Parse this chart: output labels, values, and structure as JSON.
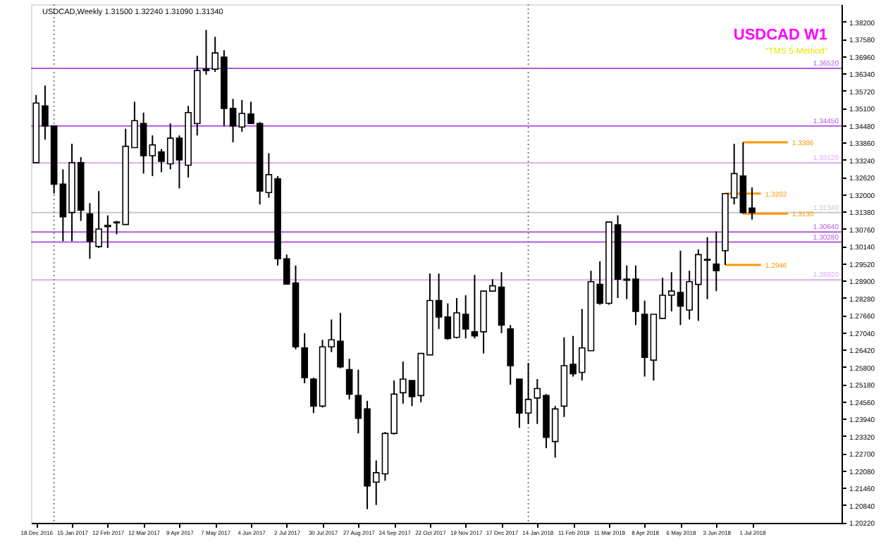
{
  "chart_data": {
    "type": "candlestick",
    "title": "USDCAD W1",
    "subtitle": "\"TMS 5-Method\"",
    "x": [
      "2016-12-18",
      "2016-12-25",
      "2017-01-01",
      "2017-01-08",
      "2017-01-15",
      "2017-01-22",
      "2017-01-29",
      "2017-02-05",
      "2017-02-12",
      "2017-02-19",
      "2017-02-26",
      "2017-03-05",
      "2017-03-12",
      "2017-03-19",
      "2017-03-26",
      "2017-04-02",
      "2017-04-09",
      "2017-04-16",
      "2017-04-23",
      "2017-04-30",
      "2017-05-07",
      "2017-05-14",
      "2017-05-21",
      "2017-05-28",
      "2017-06-04",
      "2017-06-11",
      "2017-06-18",
      "2017-06-25",
      "2017-07-02",
      "2017-07-09",
      "2017-07-16",
      "2017-07-23",
      "2017-07-30",
      "2017-08-06",
      "2017-08-13",
      "2017-08-20",
      "2017-08-27",
      "2017-09-03",
      "2017-09-10",
      "2017-09-17",
      "2017-09-24",
      "2017-10-01",
      "2017-10-08",
      "2017-10-15",
      "2017-10-22",
      "2017-10-29",
      "2017-11-05",
      "2017-11-12",
      "2017-11-19",
      "2017-11-26",
      "2017-12-03",
      "2017-12-10",
      "2017-12-17",
      "2017-12-24",
      "2017-12-31",
      "2018-01-07",
      "2018-01-14",
      "2018-01-21",
      "2018-01-28",
      "2018-02-04",
      "2018-02-11",
      "2018-02-18",
      "2018-02-25",
      "2018-03-04",
      "2018-03-11",
      "2018-03-18",
      "2018-03-25",
      "2018-04-01",
      "2018-04-08",
      "2018-04-15",
      "2018-04-22",
      "2018-04-29",
      "2018-05-06",
      "2018-05-13",
      "2018-05-20",
      "2018-05-27",
      "2018-06-03",
      "2018-06-10",
      "2018-06-17",
      "2018-06-24",
      "2018-07-01"
    ],
    "ohlc": [
      [
        1.3313,
        1.3556,
        1.3313,
        1.3527
      ],
      [
        1.3517,
        1.359,
        1.3396,
        1.3445
      ],
      [
        1.3445,
        1.3445,
        1.3202,
        1.3236
      ],
      [
        1.3236,
        1.3289,
        1.3031,
        1.3119
      ],
      [
        1.3134,
        1.3381,
        1.3031,
        1.3313
      ],
      [
        1.3313,
        1.3333,
        1.3104,
        1.3143
      ],
      [
        1.3129,
        1.3168,
        1.2968,
        1.3031
      ],
      [
        1.3012,
        1.3211,
        1.3007,
        1.3075
      ],
      [
        1.3083,
        1.3124,
        1.3007,
        1.3088
      ],
      [
        1.31,
        1.3104,
        1.3056,
        1.3097
      ],
      [
        1.3091,
        1.3435,
        1.309,
        1.3372
      ],
      [
        1.3367,
        1.3532,
        1.3367,
        1.3464
      ],
      [
        1.3454,
        1.3493,
        1.3274,
        1.3338
      ],
      [
        1.3338,
        1.3411,
        1.3265,
        1.3377
      ],
      [
        1.3352,
        1.3362,
        1.3279,
        1.3318
      ],
      [
        1.3309,
        1.3454,
        1.3289,
        1.3401
      ],
      [
        1.3401,
        1.3411,
        1.3221,
        1.3323
      ],
      [
        1.3304,
        1.3517,
        1.326,
        1.3493
      ],
      [
        1.3454,
        1.3697,
        1.3411,
        1.3644
      ],
      [
        1.3649,
        1.379,
        1.3629,
        1.3644
      ],
      [
        1.3649,
        1.3765,
        1.3639,
        1.3707
      ],
      [
        1.3692,
        1.3717,
        1.3445,
        1.3508
      ],
      [
        1.3508,
        1.3542,
        1.3386,
        1.3445
      ],
      [
        1.3441,
        1.3538,
        1.3424,
        1.349
      ],
      [
        1.3488,
        1.3532,
        1.3453,
        1.3454
      ],
      [
        1.3454,
        1.3459,
        1.3163,
        1.3211
      ],
      [
        1.3206,
        1.3347,
        1.3187,
        1.327
      ],
      [
        1.3255,
        1.3265,
        1.2944,
        1.2968
      ],
      [
        1.2968,
        1.2983,
        1.2876,
        1.2877
      ],
      [
        1.2881,
        1.2944,
        1.2643,
        1.2652
      ],
      [
        1.2648,
        1.2701,
        1.2521,
        1.2541
      ],
      [
        1.2536,
        1.2541,
        1.2414,
        1.2439
      ],
      [
        1.2439,
        1.2677,
        1.2434,
        1.2652
      ],
      [
        1.2652,
        1.275,
        1.2633,
        1.2677
      ],
      [
        1.2672,
        1.2774,
        1.2575,
        1.258
      ],
      [
        1.257,
        1.2609,
        1.2463,
        1.2482
      ],
      [
        1.2477,
        1.257,
        1.2341,
        1.2395
      ],
      [
        1.2429,
        1.2458,
        1.2069,
        1.2152
      ],
      [
        1.2166,
        1.2244,
        1.2084,
        1.22
      ],
      [
        1.2196,
        1.2346,
        1.2171,
        1.2341
      ],
      [
        1.2341,
        1.2531,
        1.2337,
        1.2482
      ],
      [
        1.2487,
        1.2599,
        1.2448,
        1.2536
      ],
      [
        1.2531,
        1.2531,
        1.2439,
        1.2473
      ],
      [
        1.2477,
        1.2628,
        1.2453,
        1.2628
      ],
      [
        1.2623,
        1.2915,
        1.2623,
        1.2818
      ],
      [
        1.2818,
        1.2915,
        1.2716,
        1.2759
      ],
      [
        1.2759,
        1.2808,
        1.2677,
        1.2682
      ],
      [
        1.2686,
        1.2827,
        1.2682,
        1.2774
      ],
      [
        1.2769,
        1.2837,
        1.2682,
        1.2716
      ],
      [
        1.2706,
        1.291,
        1.2682,
        1.2691
      ],
      [
        1.2706,
        1.2852,
        1.2628,
        1.2852
      ],
      [
        1.2852,
        1.2895,
        1.2852,
        1.2871
      ],
      [
        1.2866,
        1.292,
        1.2701,
        1.273
      ],
      [
        1.2716,
        1.273,
        1.2516,
        1.2584
      ],
      [
        1.2536,
        1.2536,
        1.2361,
        1.2414
      ],
      [
        1.2414,
        1.2594,
        1.2375,
        1.2463
      ],
      [
        1.2468,
        1.2536,
        1.2375,
        1.2502
      ],
      [
        1.2477,
        1.2482,
        1.2288,
        1.2327
      ],
      [
        1.2312,
        1.2439,
        1.2254,
        1.2429
      ],
      [
        1.2439,
        1.2686,
        1.24,
        1.2584
      ],
      [
        1.2589,
        1.2691,
        1.2545,
        1.2555
      ],
      [
        1.256,
        1.2788,
        1.2531,
        1.2648
      ],
      [
        1.2638,
        1.2925,
        1.2638,
        1.2886
      ],
      [
        1.2876,
        1.2959,
        1.2803,
        1.2808
      ],
      [
        1.2808,
        1.31,
        1.2803,
        1.31
      ],
      [
        1.309,
        1.3124,
        1.2827,
        1.2895
      ],
      [
        1.2895,
        1.2944,
        1.2823,
        1.2891
      ],
      [
        1.2895,
        1.2944,
        1.273,
        1.2779
      ],
      [
        1.2769,
        1.2818,
        1.2545,
        1.2614
      ],
      [
        1.2604,
        1.2769,
        1.2531,
        1.2769
      ],
      [
        1.2754,
        1.29,
        1.2754,
        1.2837
      ],
      [
        1.2837,
        1.292,
        1.2779,
        1.2852
      ],
      [
        1.2847,
        1.2997,
        1.273,
        1.2798
      ],
      [
        1.2784,
        1.2925,
        1.275,
        1.2886
      ],
      [
        1.2876,
        1.3002,
        1.2745,
        1.2983
      ],
      [
        1.2966,
        1.3046,
        1.2823,
        1.2963
      ],
      [
        1.2949,
        1.3066,
        1.2852,
        1.2925
      ],
      [
        1.2997,
        1.3202,
        1.2946,
        1.3202
      ],
      [
        1.3187,
        1.3381,
        1.3163,
        1.3274
      ],
      [
        1.3265,
        1.3386,
        1.313,
        1.3134
      ],
      [
        1.315,
        1.3224,
        1.3109,
        1.3134
      ]
    ],
    "series": [
      {
        "type": "line",
        "color": "#ff9900",
        "x": [
          "2018-06-24",
          "2018-07-29"
        ],
        "values": [
          1.3386,
          1.3386
        ]
      },
      {
        "type": "line",
        "color": "#ff9900",
        "x": [
          "2018-06-10",
          "2018-07-08"
        ],
        "values": [
          1.3202,
          1.3202
        ]
      },
      {
        "type": "line",
        "color": "#ff9900",
        "x": [
          "2018-06-24",
          "2018-07-29"
        ],
        "values": [
          1.313,
          1.313
        ]
      },
      {
        "type": "line",
        "color": "#ff9900",
        "x": [
          "2018-06-10",
          "2018-07-08"
        ],
        "values": [
          1.2946,
          1.2946
        ]
      }
    ],
    "xlim": [
      "2016-12-14",
      "2018-09-09"
    ],
    "ylim": [
      1.202,
      1.3882
    ],
    "xticks": [
      {
        "value": "2016-12-18",
        "label": "18 Dec 2016"
      },
      {
        "value": "2017-01-15",
        "label": "15 Jan 2017"
      },
      {
        "value": "2017-02-12",
        "label": "12 Feb 2017"
      },
      {
        "value": "2017-03-12",
        "label": "12 Mar 2017"
      },
      {
        "value": "2017-04-09",
        "label": "9 Apr 2017"
      },
      {
        "value": "2017-05-07",
        "label": "7 May 2017"
      },
      {
        "value": "2017-06-04",
        "label": "4 Jun 2017"
      },
      {
        "value": "2017-07-02",
        "label": "2 Jul 2017"
      },
      {
        "value": "2017-07-30",
        "label": "30 Jul 2017"
      },
      {
        "value": "2017-08-27",
        "label": "27 Aug 2017"
      },
      {
        "value": "2017-09-24",
        "label": "24 Sep 2017"
      },
      {
        "value": "2017-10-22",
        "label": "22 Oct 2017"
      },
      {
        "value": "2017-11-19",
        "label": "19 Nov 2017"
      },
      {
        "value": "2017-12-17",
        "label": "17 Dec 2017"
      },
      {
        "value": "2018-01-14",
        "label": "14 Jan 2018"
      },
      {
        "value": "2018-02-11",
        "label": "11 Feb 2018"
      },
      {
        "value": "2018-03-11",
        "label": "11 Mar 2018"
      },
      {
        "value": "2018-04-08",
        "label": "8 Apr 2018"
      },
      {
        "value": "2018-05-06",
        "label": "6 May 2018"
      },
      {
        "value": "2018-06-03",
        "label": "3 Jun 2018"
      },
      {
        "value": "2018-07-01",
        "label": "1 Jul 2018"
      }
    ],
    "yticks": [
      {
        "value": 1.382,
        "label": "1.38200"
      },
      {
        "value": 1.3758,
        "label": "1.37580"
      },
      {
        "value": 1.3696,
        "label": "1.36960"
      },
      {
        "value": 1.3634,
        "label": "1.36340"
      },
      {
        "value": 1.3572,
        "label": "1.35720"
      },
      {
        "value": 1.351,
        "label": "1.35100"
      },
      {
        "value": 1.3448,
        "label": "1.34480"
      },
      {
        "value": 1.3386,
        "label": "1.33860"
      },
      {
        "value": 1.3324,
        "label": "1.33240"
      },
      {
        "value": 1.3262,
        "label": "1.32620"
      },
      {
        "value": 1.32,
        "label": "1.32000"
      },
      {
        "value": 1.3138,
        "label": "1.31380"
      },
      {
        "value": 1.3076,
        "label": "1.30760"
      },
      {
        "value": 1.3014,
        "label": "1.30140"
      },
      {
        "value": 1.2952,
        "label": "1.29520"
      },
      {
        "value": 1.289,
        "label": "1.28900"
      },
      {
        "value": 1.2828,
        "label": "1.28280"
      },
      {
        "value": 1.2766,
        "label": "1.27660"
      },
      {
        "value": 1.2704,
        "label": "1.27040"
      },
      {
        "value": 1.2642,
        "label": "1.26420"
      },
      {
        "value": 1.258,
        "label": "1.25800"
      },
      {
        "value": 1.2518,
        "label": "1.25180"
      },
      {
        "value": 1.2456,
        "label": "1.24560"
      },
      {
        "value": 1.2394,
        "label": "1.23940"
      },
      {
        "value": 1.2332,
        "label": "1.23320"
      },
      {
        "value": 1.227,
        "label": "1.22700"
      },
      {
        "value": 1.2208,
        "label": "1.22080"
      },
      {
        "value": 1.2146,
        "label": "1.21460"
      },
      {
        "value": 1.2084,
        "label": "1.20840"
      },
      {
        "value": 1.2022,
        "label": "1.20220"
      }
    ],
    "ref_lines": [
      {
        "axis": "y",
        "value": 1.3652,
        "label": "1.36520",
        "color": "#b05ae0"
      },
      {
        "axis": "y",
        "value": 1.3445,
        "label": "1.34450",
        "color": "#b05ae0"
      },
      {
        "axis": "y",
        "value": 1.3312,
        "label": "1.33120",
        "color": "#dcaaf0"
      },
      {
        "axis": "y",
        "value": 1.3134,
        "label": "1.31340",
        "color": "#c8c8c8"
      },
      {
        "axis": "y",
        "value": 1.3064,
        "label": "1.30640",
        "color": "#b05ae0"
      },
      {
        "axis": "y",
        "value": 1.3028,
        "label": "1.30280",
        "color": "#b05ae0"
      },
      {
        "axis": "y",
        "value": 1.2892,
        "label": "1.28920",
        "color": "#dcaaf0"
      },
      {
        "axis": "x",
        "value": "2017-01-01",
        "color": "#808080",
        "line_style": "dotted"
      },
      {
        "axis": "x",
        "value": "2018-01-07",
        "color": "#808080",
        "line_style": "dotted"
      }
    ],
    "annotations": [
      "USDCAD,Weekly  1.31500 1.32240 1.31090 1.31340",
      {
        "text": "1.3386",
        "x": "2018-07-29",
        "y": 1.3386
      },
      {
        "text": "1.3202",
        "x": "2018-07-08",
        "y": 1.3202
      },
      {
        "text": "1.3130",
        "x": "2018-07-29",
        "y": 1.313
      },
      {
        "text": "1.2946",
        "x": "2018-07-08",
        "y": 1.2946
      }
    ],
    "grid": false
  }
}
